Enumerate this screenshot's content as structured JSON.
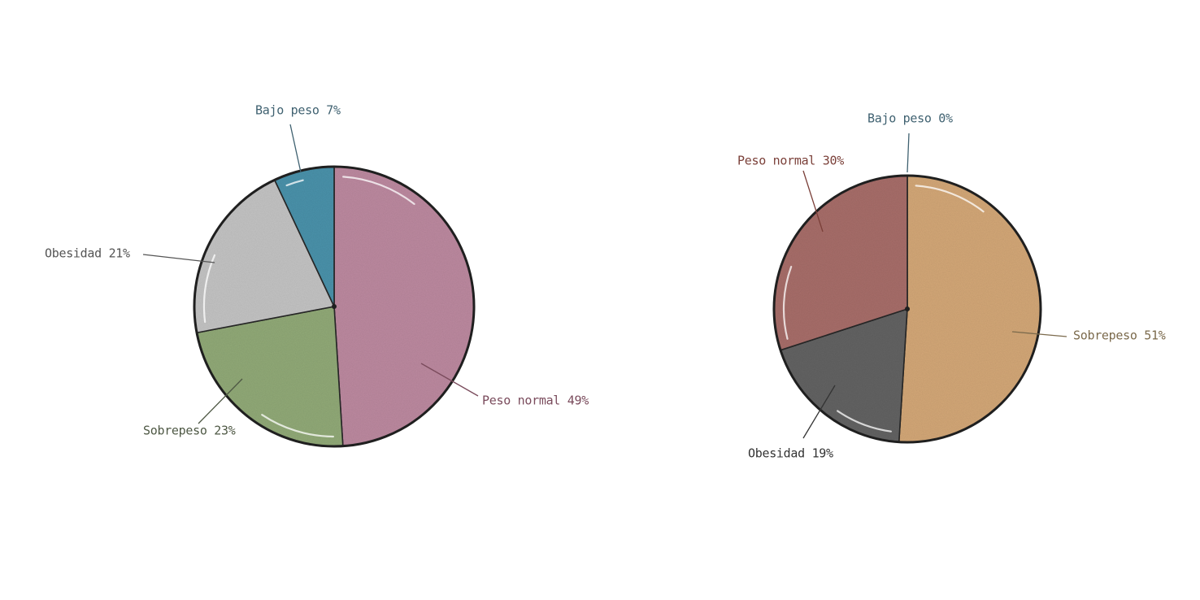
{
  "chart_data": [
    {
      "type": "pie",
      "title": "",
      "categories": [
        "Peso normal",
        "Sobrepeso",
        "Obesidad",
        "Bajo peso"
      ],
      "values": [
        49,
        23,
        21,
        7
      ],
      "labels": [
        "Peso normal 49%",
        "Sobrepeso 23%",
        "Obesidad 21%",
        "Bajo peso 7%"
      ],
      "colors": [
        "#bd8aa0",
        "#92aa78",
        "#c4c4c4",
        "#4b93ab"
      ],
      "label_colors": [
        "#7a4b5c",
        "#4e5844",
        "#555555",
        "#3f6170"
      ],
      "start_angle_deg": 0,
      "direction": "clockwise",
      "legend": "none"
    },
    {
      "type": "pie",
      "title": "",
      "categories": [
        "Sobrepeso",
        "Obesidad",
        "Peso normal",
        "Bajo peso"
      ],
      "values": [
        51,
        19,
        30,
        0
      ],
      "labels": [
        "Sobrepeso 51%",
        "Obesidad 19%",
        "Peso normal 30%",
        "Bajo peso 0%"
      ],
      "colors": [
        "#d4a878",
        "#636363",
        "#a86e6b",
        "#4b93ab"
      ],
      "label_colors": [
        "#7b6a4c",
        "#333333",
        "#7a3f38",
        "#3f6170"
      ],
      "start_angle_deg": 0,
      "direction": "clockwise",
      "legend": "none"
    }
  ]
}
